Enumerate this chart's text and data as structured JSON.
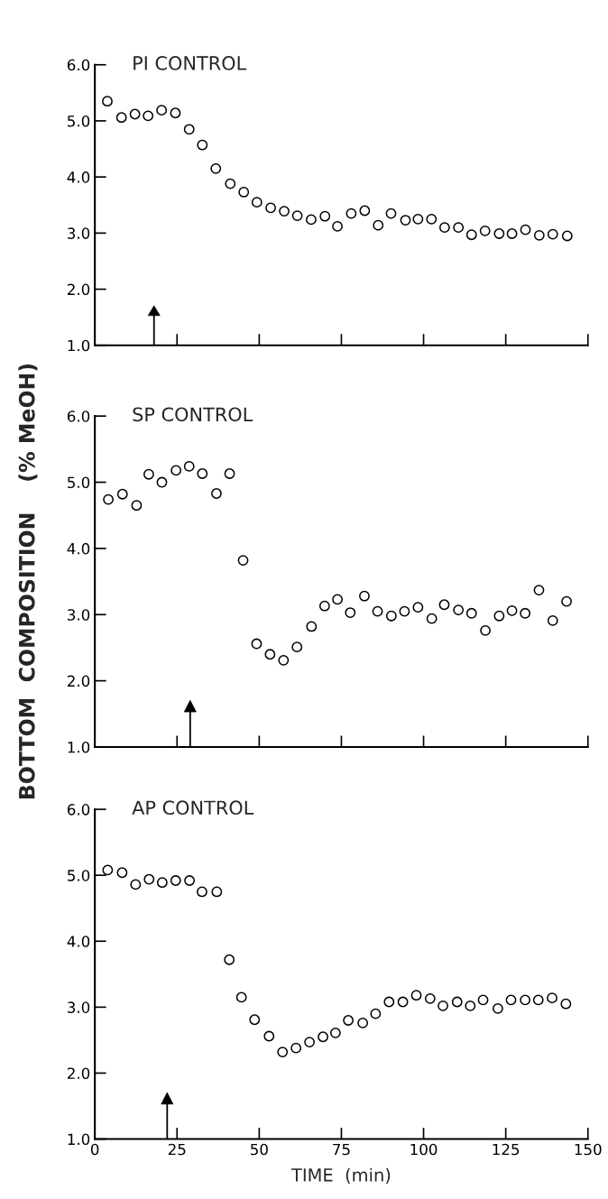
{
  "chart_data": [
    {
      "type": "scatter",
      "title": "PI CONTROL",
      "marker": "circle",
      "grid": false,
      "tick_labels": "y",
      "xlim": [
        0,
        150
      ],
      "xticks": [
        {
          "value": 0,
          "label": null
        },
        {
          "value": 25,
          "label": null
        },
        {
          "value": 50,
          "label": null
        },
        {
          "value": 75,
          "label": null
        },
        {
          "value": 100,
          "label": null
        },
        {
          "value": 125,
          "label": null
        },
        {
          "value": 150,
          "label": null
        }
      ],
      "ylim": [
        1.0,
        6.0
      ],
      "yticks": [
        {
          "value": 1.0,
          "label": "1.0"
        },
        {
          "value": 2.0,
          "label": "2.0"
        },
        {
          "value": 3.0,
          "label": "3.0"
        },
        {
          "value": 4.0,
          "label": "4.0"
        },
        {
          "value": 5.0,
          "label": "5.0"
        },
        {
          "value": 6.0,
          "label": "6.0"
        }
      ],
      "ref_lines": [
        {
          "axis": "x",
          "value": 18,
          "color": "#000000"
        }
      ],
      "series": [
        {
          "color": "#000000",
          "x": [
            3.8,
            8.1,
            12.2,
            16.2,
            20.3,
            24.5,
            28.7,
            32.7,
            36.8,
            41.2,
            45.3,
            49.3,
            53.5,
            57.6,
            61.6,
            65.8,
            70.0,
            73.8,
            78.0,
            82.1,
            86.2,
            90.1,
            94.5,
            98.3,
            102.4,
            106.4,
            110.6,
            114.6,
            118.7,
            123.0,
            126.9,
            131.0,
            135.2,
            139.3,
            143.7
          ],
          "values": [
            5.35,
            5.06,
            5.12,
            5.09,
            5.19,
            5.14,
            4.85,
            4.57,
            4.15,
            3.88,
            3.73,
            3.55,
            3.45,
            3.39,
            3.31,
            3.24,
            3.3,
            3.12,
            3.35,
            3.4,
            3.14,
            3.35,
            3.23,
            3.25,
            3.25,
            3.1,
            3.1,
            2.97,
            3.04,
            2.99,
            2.99,
            3.06,
            2.96,
            2.98,
            2.95
          ]
        }
      ]
    },
    {
      "type": "scatter",
      "title": "SP CONTROL",
      "ylabel": "BOTTOM  COMPOSITION    (% MeOH)",
      "marker": "circle",
      "grid": false,
      "tick_labels": "y",
      "xlim": [
        0,
        150
      ],
      "xticks": [
        {
          "value": 0,
          "label": null
        },
        {
          "value": 25,
          "label": null
        },
        {
          "value": 50,
          "label": null
        },
        {
          "value": 75,
          "label": null
        },
        {
          "value": 100,
          "label": null
        },
        {
          "value": 125,
          "label": null
        },
        {
          "value": 150,
          "label": null
        }
      ],
      "ylim": [
        1.0,
        6.0
      ],
      "yticks": [
        {
          "value": 1.0,
          "label": "1.0"
        },
        {
          "value": 2.0,
          "label": "2.0"
        },
        {
          "value": 3.0,
          "label": "3.0"
        },
        {
          "value": 4.0,
          "label": "4.0"
        },
        {
          "value": 5.0,
          "label": "5.0"
        },
        {
          "value": 6.0,
          "label": "6.0"
        }
      ],
      "ref_lines": [
        {
          "axis": "x",
          "value": 29,
          "color": "#000000"
        }
      ],
      "series": [
        {
          "color": "#000000",
          "x": [
            4.1,
            8.4,
            12.7,
            16.4,
            20.4,
            24.7,
            28.7,
            32.7,
            37.0,
            41.0,
            45.1,
            49.2,
            53.3,
            57.4,
            61.5,
            65.9,
            69.9,
            73.8,
            77.7,
            82.0,
            86.0,
            90.2,
            94.2,
            98.3,
            102.5,
            106.3,
            110.6,
            114.6,
            118.8,
            123.0,
            126.9,
            130.9,
            135.1,
            139.3,
            143.5
          ],
          "values": [
            4.74,
            4.82,
            4.65,
            5.12,
            5.0,
            5.18,
            5.24,
            5.13,
            4.83,
            5.13,
            3.82,
            2.56,
            2.4,
            2.31,
            2.51,
            2.82,
            3.13,
            3.23,
            3.03,
            3.28,
            3.05,
            2.98,
            3.05,
            3.11,
            2.94,
            3.15,
            3.07,
            3.02,
            2.76,
            2.98,
            3.06,
            3.02,
            3.37,
            2.91,
            3.2
          ]
        }
      ]
    },
    {
      "type": "scatter",
      "title": "AP CONTROL",
      "xlabel": "TIME  (min)",
      "marker": "circle",
      "grid": false,
      "xlim": [
        0,
        150
      ],
      "xticks": [
        0,
        25,
        50,
        75,
        100,
        125,
        150
      ],
      "ylim": [
        1.0,
        6.0
      ],
      "yticks": [
        {
          "value": 1.0,
          "label": "1.0"
        },
        {
          "value": 2.0,
          "label": "2.0"
        },
        {
          "value": 3.0,
          "label": "3.0"
        },
        {
          "value": 4.0,
          "label": "4.0"
        },
        {
          "value": 5.0,
          "label": "5.0"
        },
        {
          "value": 6.0,
          "label": "6.0"
        }
      ],
      "ref_lines": [
        {
          "axis": "x",
          "value": 22,
          "color": "#000000"
        }
      ],
      "series": [
        {
          "color": "#000000",
          "x": [
            3.9,
            8.3,
            12.4,
            16.5,
            20.5,
            24.6,
            28.8,
            32.6,
            37.1,
            40.9,
            44.6,
            48.6,
            53.0,
            57.1,
            61.2,
            65.3,
            69.4,
            73.2,
            77.1,
            81.5,
            85.4,
            89.5,
            93.7,
            97.8,
            102.0,
            105.9,
            110.2,
            114.2,
            118.1,
            122.6,
            126.6,
            130.9,
            134.9,
            139.1,
            143.3
          ],
          "values": [
            5.08,
            5.04,
            4.86,
            4.94,
            4.89,
            4.92,
            4.92,
            4.75,
            4.75,
            3.72,
            3.15,
            2.81,
            2.56,
            2.32,
            2.38,
            2.47,
            2.55,
            2.61,
            2.8,
            2.76,
            2.9,
            3.08,
            3.08,
            3.18,
            3.13,
            3.02,
            3.08,
            3.02,
            3.11,
            2.98,
            3.11,
            3.11,
            3.11,
            3.14,
            3.05
          ]
        }
      ]
    }
  ]
}
